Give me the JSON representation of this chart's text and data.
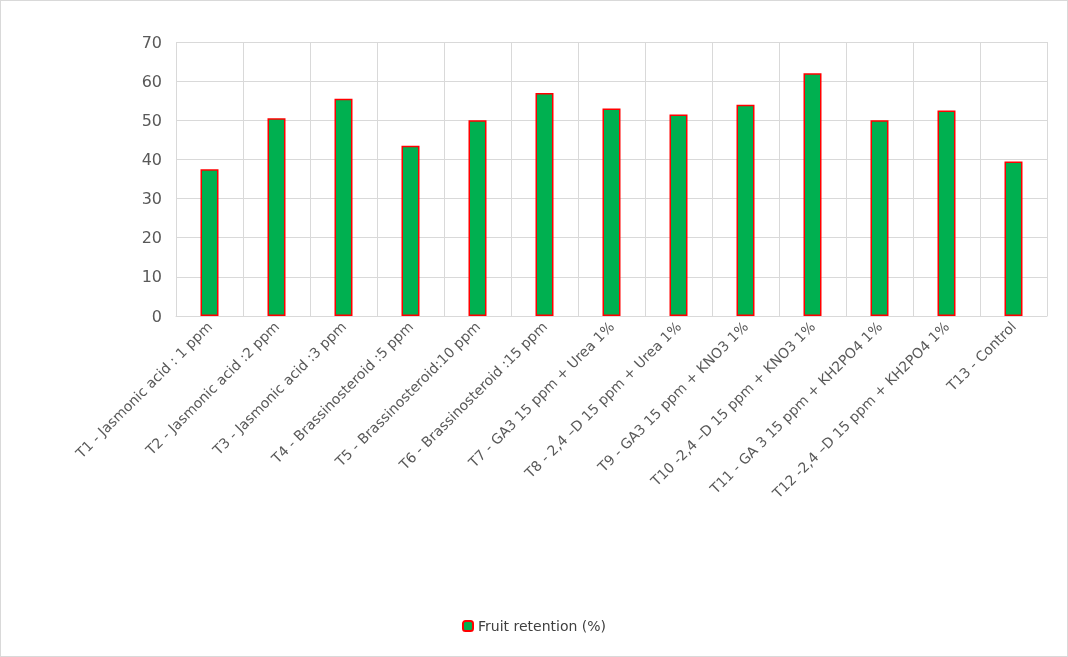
{
  "chart_data": {
    "type": "bar",
    "categories": [
      "T1 - Jasmonic acid : 1 ppm",
      "T2 - Jasmonic acid :2 ppm",
      "T3 - Jasmonic acid :3 ppm",
      "T4 - Brassinosteroid :5 ppm",
      "T5 - Brassinosteroid:10 ppm",
      "T6 - Brassinosteroid :15 ppm",
      "T7 - GA3 15 ppm + Urea 1%",
      "T8 - 2,4 –D 15 ppm + Urea 1%",
      "T9 - GA3 15 ppm + KNO3 1%",
      "T10 -2,4 –D 15 ppm + KNO3 1%",
      "T11 - GA 3 15 ppm + KH2PO4 1%",
      "T12 -2,4 –D 15 ppm + KH2PO4 1%",
      "T13 - Control"
    ],
    "series": [
      {
        "name": "Fruit retention (%)",
        "color": "#00b050",
        "values": [
          37.5,
          50.5,
          55.5,
          43.5,
          50,
          57,
          53,
          51.5,
          54,
          62,
          50,
          52.5,
          39.5
        ]
      }
    ],
    "ylim": [
      0,
      70
    ],
    "yticks": [
      0,
      10,
      20,
      30,
      40,
      50,
      60,
      70
    ],
    "grid": true,
    "legend": "bottom"
  }
}
